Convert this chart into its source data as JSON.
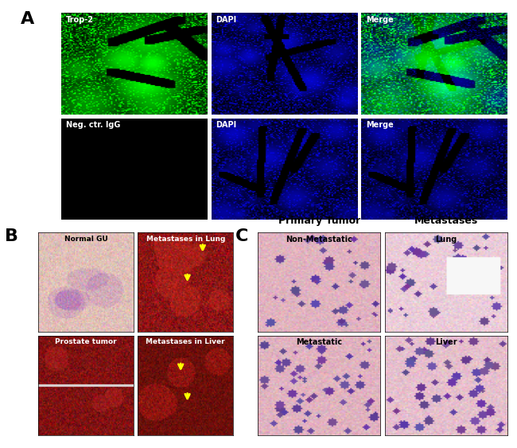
{
  "panel_A_label": "A",
  "panel_B_label": "B",
  "panel_C_label": "C",
  "panel_A_row1_labels": [
    "Trop-2",
    "DAPI",
    "Merge"
  ],
  "panel_A_row2_labels": [
    "Neg. ctr. IgG",
    "DAPI",
    "Merge"
  ],
  "panel_B_labels": [
    "Normal GU",
    "Metastases in Lung",
    "Prostate tumor",
    "Metastases in Liver"
  ],
  "panel_C_col_labels": [
    "Primary Tumor",
    "Metastases"
  ],
  "panel_C_row1_labels": [
    "Non-Metastatic",
    "Lung"
  ],
  "panel_C_row2_labels": [
    "Metastatic",
    "Liver"
  ],
  "bg_color": "#ffffff",
  "label_fontsize": 16,
  "sublabel_fontsize": 7,
  "col_header_fontsize": 9
}
